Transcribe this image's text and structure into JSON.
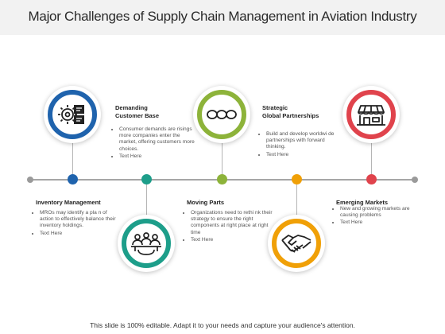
{
  "title": "Major Challenges of Supply Chain Management in Aviation Industry",
  "colors": {
    "blue": "#1f63ad",
    "teal": "#1d9e8a",
    "green": "#8db33a",
    "orange": "#f0a007",
    "red": "#e0434c"
  },
  "steps": [
    {
      "id": "demanding-customer-base",
      "heading": "Demanding\nCustomer Base",
      "icon": "settings-documents-icon",
      "bullets": [
        "Consumer demands are risings more companies enter the market, offering customers more choices.",
        "Text Here"
      ]
    },
    {
      "id": "inventory-management",
      "heading": "Inventory Management",
      "icon": "team-meeting-icon",
      "bullets": [
        "MROs may identify a pla n of action to effectively balance their inventory holdings.",
        "Text Here"
      ]
    },
    {
      "id": "strategic-global-partnerships",
      "heading": "Strategic\nGlobal Partnerships",
      "icon": "chain-links-icon",
      "bullets": [
        "Build and develop worldwi de partnerships with forward thinking.",
        "Text Here"
      ]
    },
    {
      "id": "moving-parts",
      "heading": "Moving Parts",
      "icon": "handshake-icon",
      "bullets": [
        "Organizations need to rethi nk their strategy to ensure the right components at right place at right time",
        "Text Here"
      ]
    },
    {
      "id": "emerging-markets",
      "heading": "Emerging Markets",
      "icon": "storefront-icon",
      "bullets": [
        "New and growing markets are causing problems",
        "Text Here"
      ]
    }
  ],
  "footer": "This slide is 100% editable. Adapt it to your needs and capture your audience's attention."
}
